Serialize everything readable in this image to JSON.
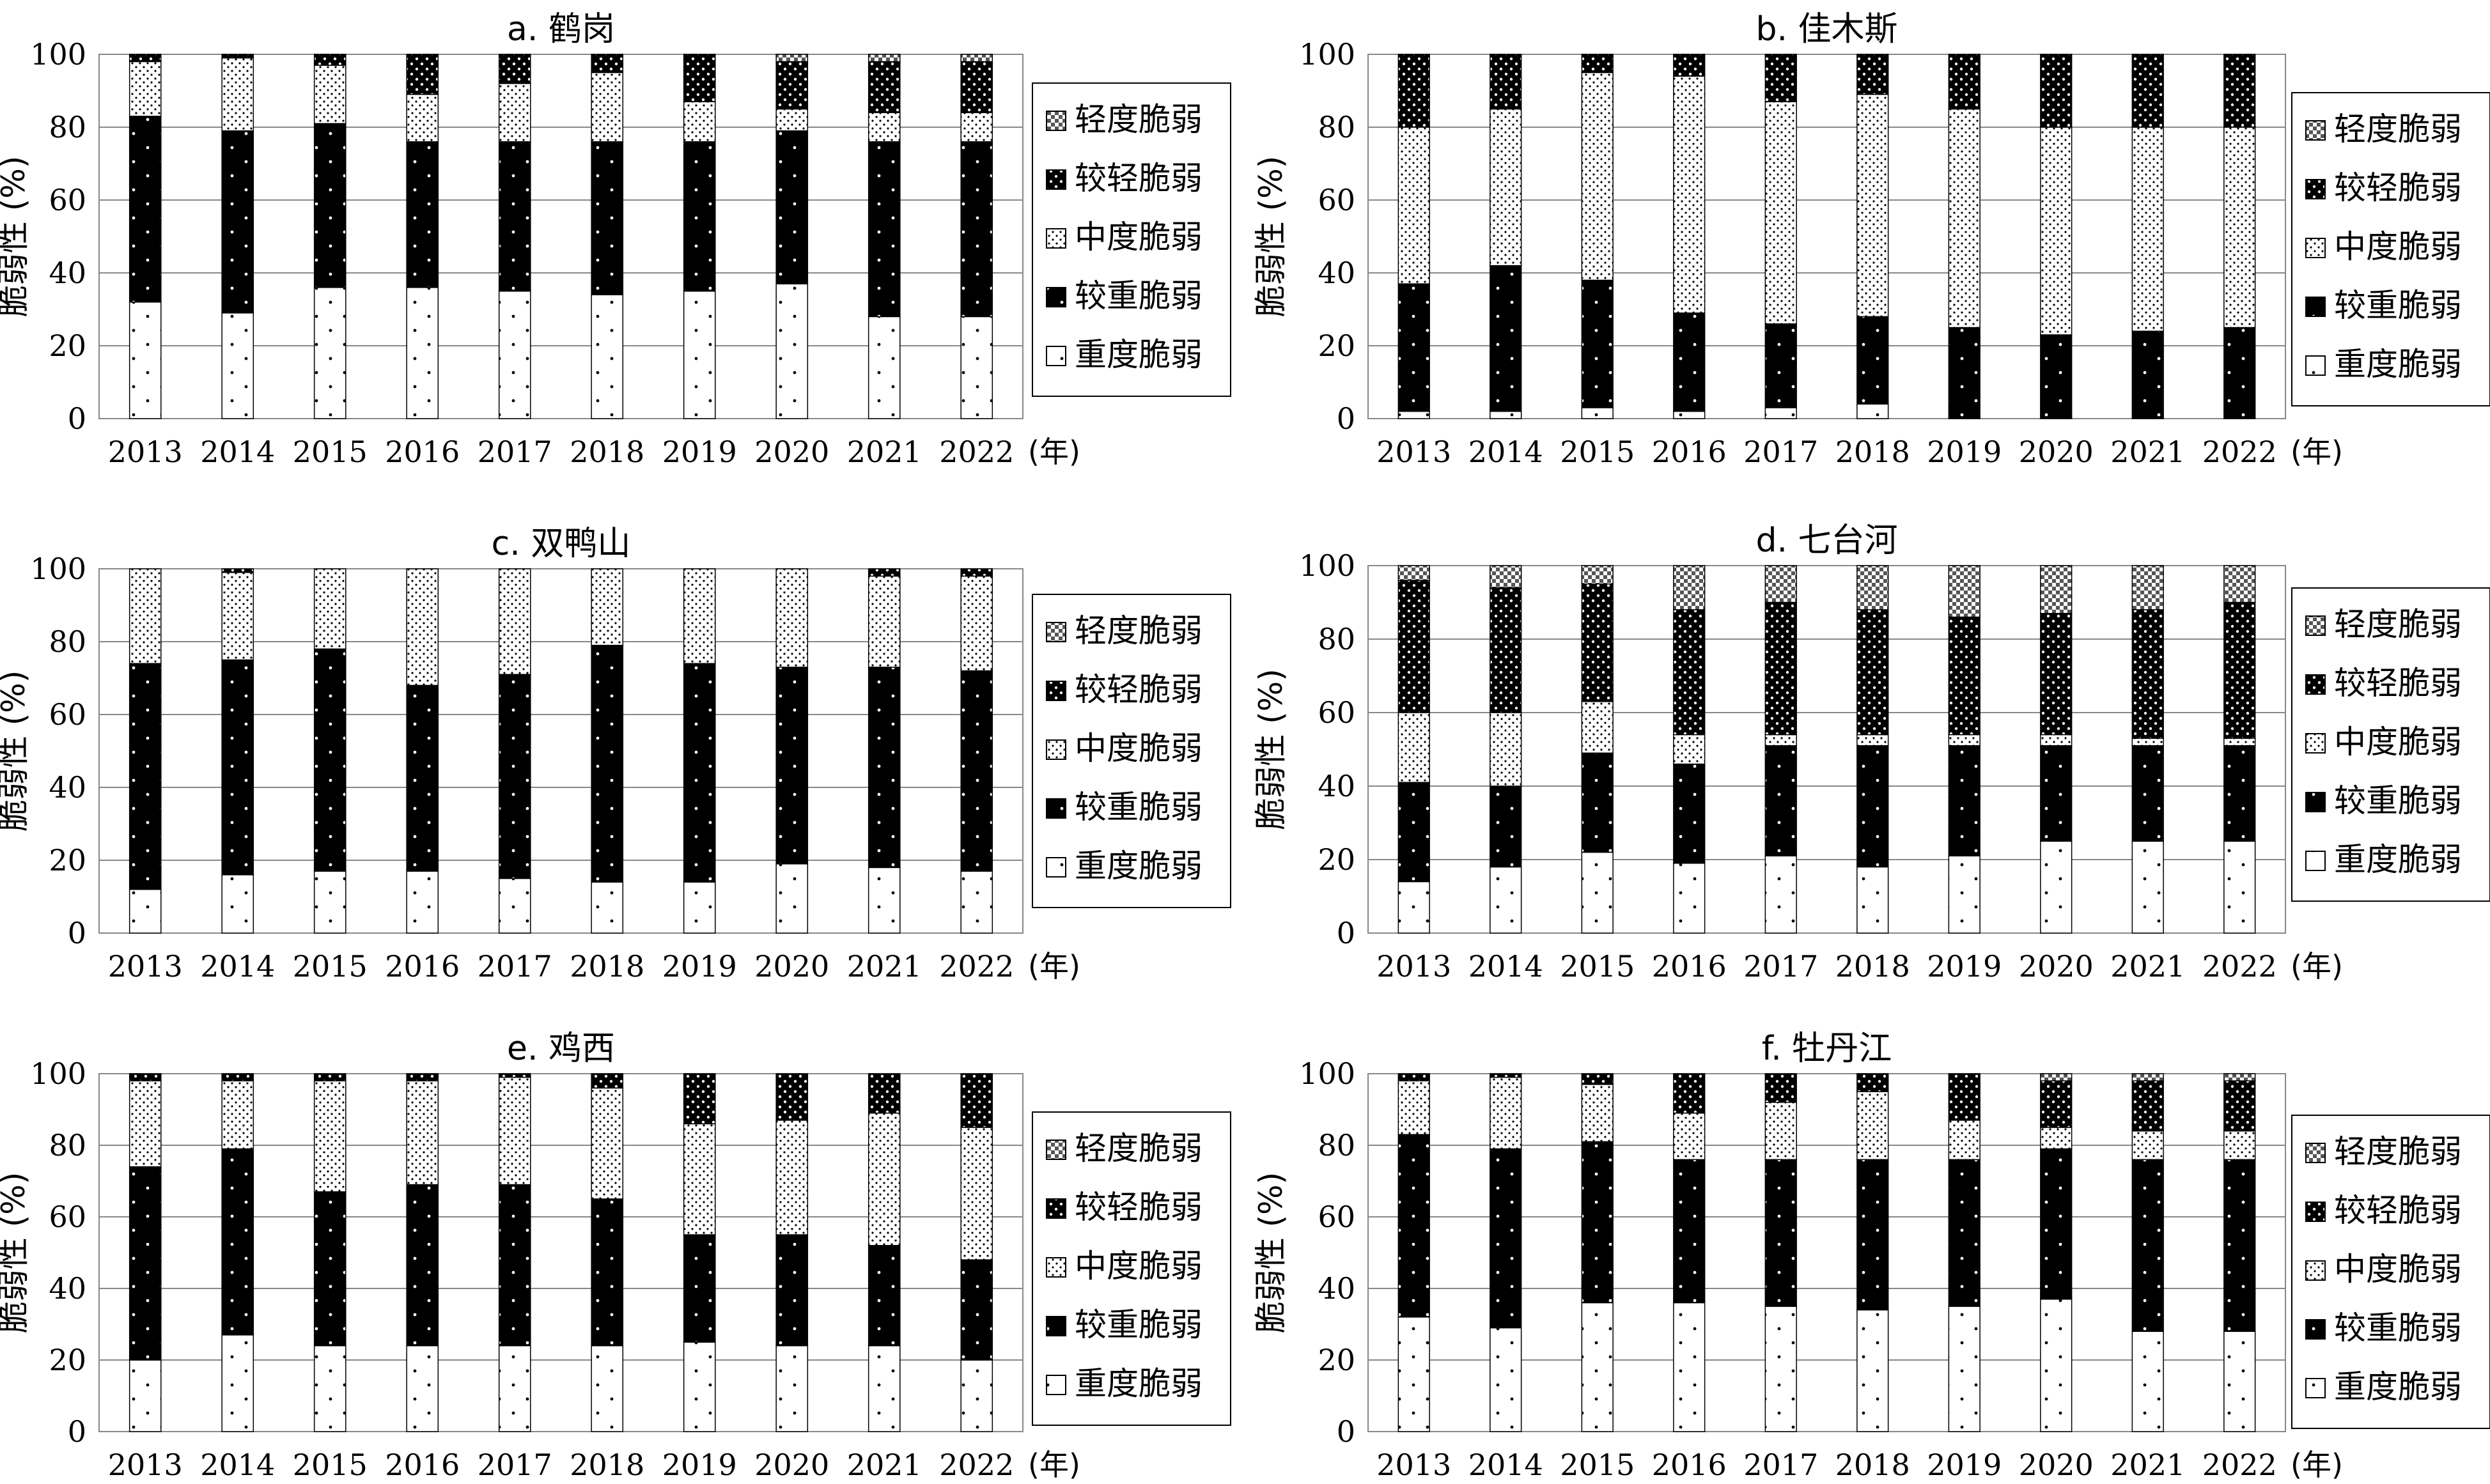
{
  "unit_label": "(年)",
  "y_axis_label": "脆弱性 (%)",
  "legend": [
    "轻度脆弱",
    "较轻脆弱",
    "中度脆弱",
    "较重脆弱",
    "重度脆弱"
  ],
  "chart_data": [
    {
      "type": "bar",
      "stacked": true,
      "title": "a. 鹤岗",
      "categories": [
        "2013",
        "2014",
        "2015",
        "2016",
        "2017",
        "2018",
        "2019",
        "2020",
        "2021",
        "2022"
      ],
      "xlabel": "(年)",
      "ylabel": "脆弱性 (%)",
      "ylim": [
        0,
        100
      ],
      "yticks": [
        0,
        20,
        40,
        60,
        80,
        100
      ],
      "legend": [
        "轻度脆弱",
        "较轻脆弱",
        "中度脆弱",
        "较重脆弱",
        "重度脆弱"
      ],
      "series": [
        {
          "name": "重度脆弱",
          "values": [
            32,
            29,
            36,
            36,
            35,
            34,
            35,
            37,
            28,
            28
          ]
        },
        {
          "name": "较重脆弱",
          "values": [
            51,
            50,
            45,
            40,
            41,
            42,
            41,
            42,
            48,
            48
          ]
        },
        {
          "name": "中度脆弱",
          "values": [
            15,
            20,
            16,
            13,
            16,
            19,
            11,
            6,
            8,
            8
          ]
        },
        {
          "name": "较轻脆弱",
          "values": [
            2,
            1,
            3,
            11,
            8,
            5,
            13,
            13,
            14,
            14
          ]
        },
        {
          "name": "轻度脆弱",
          "values": [
            0,
            0,
            0,
            0,
            0,
            0,
            0,
            2,
            2,
            2
          ]
        }
      ]
    },
    {
      "type": "bar",
      "stacked": true,
      "title": "b. 佳木斯",
      "categories": [
        "2013",
        "2014",
        "2015",
        "2016",
        "2017",
        "2018",
        "2019",
        "2020",
        "2021",
        "2022"
      ],
      "xlabel": "(年)",
      "ylabel": "脆弱性 (%)",
      "ylim": [
        0,
        100
      ],
      "yticks": [
        0,
        20,
        40,
        60,
        80,
        100
      ],
      "legend": [
        "轻度脆弱",
        "较轻脆弱",
        "中度脆弱",
        "较重脆弱",
        "重度脆弱"
      ],
      "series": [
        {
          "name": "重度脆弱",
          "values": [
            2,
            2,
            3,
            2,
            3,
            4,
            0,
            0,
            0,
            0
          ]
        },
        {
          "name": "较重脆弱",
          "values": [
            35,
            40,
            35,
            27,
            23,
            24,
            25,
            23,
            24,
            25
          ]
        },
        {
          "name": "中度脆弱",
          "values": [
            43,
            43,
            57,
            65,
            61,
            61,
            60,
            57,
            56,
            55
          ]
        },
        {
          "name": "较轻脆弱",
          "values": [
            20,
            15,
            5,
            6,
            13,
            11,
            15,
            20,
            20,
            20
          ]
        },
        {
          "name": "轻度脆弱",
          "values": [
            0,
            0,
            0,
            0,
            0,
            0,
            0,
            0,
            0,
            0
          ]
        }
      ]
    },
    {
      "type": "bar",
      "stacked": true,
      "title": "c. 双鸭山",
      "categories": [
        "2013",
        "2014",
        "2015",
        "2016",
        "2017",
        "2018",
        "2019",
        "2020",
        "2021",
        "2022"
      ],
      "xlabel": "(年)",
      "ylabel": "脆弱性 (%)",
      "ylim": [
        0,
        100
      ],
      "yticks": [
        0,
        20,
        40,
        60,
        80,
        100
      ],
      "legend": [
        "轻度脆弱",
        "较轻脆弱",
        "中度脆弱",
        "较重脆弱",
        "重度脆弱"
      ],
      "series": [
        {
          "name": "重度脆弱",
          "values": [
            12,
            16,
            17,
            17,
            15,
            14,
            14,
            19,
            18,
            17
          ]
        },
        {
          "name": "较重脆弱",
          "values": [
            62,
            59,
            61,
            51,
            56,
            65,
            60,
            54,
            55,
            55
          ]
        },
        {
          "name": "中度脆弱",
          "values": [
            26,
            24,
            22,
            32,
            29,
            21,
            26,
            27,
            25,
            26
          ]
        },
        {
          "name": "较轻脆弱",
          "values": [
            0,
            1,
            0,
            0,
            0,
            0,
            0,
            0,
            2,
            2
          ]
        },
        {
          "name": "轻度脆弱",
          "values": [
            0,
            0,
            0,
            0,
            0,
            0,
            0,
            0,
            0,
            0
          ]
        }
      ]
    },
    {
      "type": "bar",
      "stacked": true,
      "title": "d. 七台河",
      "categories": [
        "2013",
        "2014",
        "2015",
        "2016",
        "2017",
        "2018",
        "2019",
        "2020",
        "2021",
        "2022"
      ],
      "xlabel": "(年)",
      "ylabel": "脆弱性 (%)",
      "ylim": [
        0,
        100
      ],
      "yticks": [
        0,
        20,
        40,
        60,
        80,
        100
      ],
      "legend": [
        "轻度脆弱",
        "较轻脆弱",
        "中度脆弱",
        "较重脆弱",
        "重度脆弱"
      ],
      "series": [
        {
          "name": "重度脆弱",
          "values": [
            14,
            18,
            22,
            19,
            21,
            18,
            21,
            25,
            25,
            25
          ]
        },
        {
          "name": "较重脆弱",
          "values": [
            27,
            22,
            27,
            27,
            30,
            33,
            30,
            26,
            26,
            26
          ]
        },
        {
          "name": "中度脆弱",
          "values": [
            19,
            20,
            14,
            8,
            3,
            3,
            3,
            3,
            2,
            2
          ]
        },
        {
          "name": "较轻脆弱",
          "values": [
            36,
            34,
            32,
            34,
            36,
            34,
            32,
            33,
            35,
            37
          ]
        },
        {
          "name": "轻度脆弱",
          "values": [
            4,
            6,
            5,
            12,
            10,
            12,
            14,
            13,
            12,
            10
          ]
        }
      ]
    },
    {
      "type": "bar",
      "stacked": true,
      "title": "e. 鸡西",
      "categories": [
        "2013",
        "2014",
        "2015",
        "2016",
        "2017",
        "2018",
        "2019",
        "2020",
        "2021",
        "2022"
      ],
      "xlabel": "(年)",
      "ylabel": "脆弱性 (%)",
      "ylim": [
        0,
        100
      ],
      "yticks": [
        0,
        20,
        40,
        60,
        80,
        100
      ],
      "legend": [
        "轻度脆弱",
        "较轻脆弱",
        "中度脆弱",
        "较重脆弱",
        "重度脆弱"
      ],
      "series": [
        {
          "name": "重度脆弱",
          "values": [
            20,
            27,
            24,
            24,
            24,
            24,
            25,
            24,
            24,
            20
          ]
        },
        {
          "name": "较重脆弱",
          "values": [
            54,
            52,
            43,
            45,
            45,
            41,
            30,
            31,
            28,
            28
          ]
        },
        {
          "name": "中度脆弱",
          "values": [
            24,
            19,
            31,
            29,
            30,
            31,
            31,
            32,
            37,
            37
          ]
        },
        {
          "name": "较轻脆弱",
          "values": [
            2,
            2,
            2,
            2,
            1,
            4,
            14,
            13,
            11,
            15
          ]
        },
        {
          "name": "轻度脆弱",
          "values": [
            0,
            0,
            0,
            0,
            0,
            0,
            0,
            0,
            0,
            0
          ]
        }
      ]
    },
    {
      "type": "bar",
      "stacked": true,
      "title": "f. 牡丹江",
      "categories": [
        "2013",
        "2014",
        "2015",
        "2016",
        "2017",
        "2018",
        "2019",
        "2020",
        "2021",
        "2022"
      ],
      "xlabel": "(年)",
      "ylabel": "脆弱性 (%)",
      "ylim": [
        0,
        100
      ],
      "yticks": [
        0,
        20,
        40,
        60,
        80,
        100
      ],
      "legend": [
        "轻度脆弱",
        "较轻脆弱",
        "中度脆弱",
        "较重脆弱",
        "重度脆弱"
      ],
      "series": [
        {
          "name": "重度脆弱",
          "values": [
            32,
            29,
            36,
            36,
            35,
            34,
            35,
            37,
            28,
            28
          ]
        },
        {
          "name": "较重脆弱",
          "values": [
            51,
            50,
            45,
            40,
            41,
            42,
            41,
            42,
            48,
            48
          ]
        },
        {
          "name": "中度脆弱",
          "values": [
            15,
            20,
            16,
            13,
            16,
            19,
            11,
            6,
            8,
            8
          ]
        },
        {
          "name": "较轻脆弱",
          "values": [
            2,
            1,
            3,
            11,
            8,
            5,
            13,
            13,
            14,
            14
          ]
        },
        {
          "name": "轻度脆弱",
          "values": [
            0,
            0,
            0,
            0,
            0,
            0,
            0,
            2,
            2,
            2
          ]
        }
      ]
    }
  ]
}
